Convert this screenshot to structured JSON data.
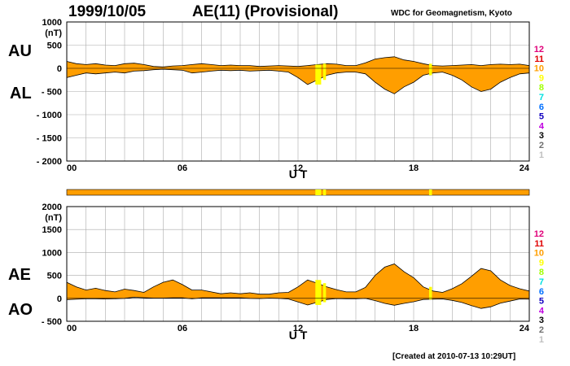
{
  "header": {
    "date": "1999/10/05",
    "title": "AE(11) (Provisional)",
    "source": "WDC for Geomagnetism, Kyoto"
  },
  "footer": {
    "created": "[Created at 2010-07-13 10:29UT]"
  },
  "colors": {
    "fill": "#ff9e00",
    "highlight": "#ffff00",
    "station_scale": [
      "#e0007a",
      "#e00000",
      "#ff9e00",
      "#ffff00",
      "#a0ff00",
      "#00e0e0",
      "#0070ff",
      "#1000c0",
      "#c000e0",
      "#000000",
      "#707070",
      "#c0c0c0"
    ]
  },
  "station_scale_labels": [
    "12",
    "11",
    "10",
    "9",
    "8",
    "7",
    "6",
    "5",
    "4",
    "3",
    "2",
    "1"
  ],
  "chart_data": [
    {
      "type": "area",
      "panel": "AU/AL",
      "labels": {
        "upper": "AU",
        "lower": "AL"
      },
      "xlabel": "U T",
      "ylabel_unit": "(nT)",
      "xlim": [
        0,
        24
      ],
      "ylim": [
        -2000,
        1000
      ],
      "x_ticks": [
        "00",
        "06",
        "12",
        "18",
        "24"
      ],
      "y_ticks": [
        "1000",
        "500",
        "0",
        "- 500",
        "- 1000",
        "- 1500",
        "- 2000"
      ],
      "y_tick_values": [
        1000,
        500,
        0,
        -500,
        -1000,
        -1500,
        -2000
      ],
      "grid": true,
      "series": [
        {
          "name": "AU",
          "x": [
            0,
            0.5,
            1,
            1.5,
            2,
            2.5,
            3,
            3.5,
            4,
            4.5,
            5,
            5.5,
            6,
            6.5,
            7,
            7.5,
            8,
            8.5,
            9,
            9.5,
            10,
            10.5,
            11,
            11.5,
            12,
            12.5,
            13,
            13.5,
            14,
            14.5,
            15,
            15.5,
            16,
            16.5,
            17,
            17.5,
            18,
            18.5,
            19,
            19.5,
            20,
            20.5,
            21,
            21.5,
            22,
            22.5,
            23,
            23.5,
            24
          ],
          "values": [
            150,
            100,
            80,
            100,
            70,
            60,
            100,
            110,
            80,
            40,
            30,
            50,
            60,
            80,
            100,
            80,
            60,
            70,
            60,
            60,
            40,
            50,
            60,
            50,
            40,
            60,
            80,
            100,
            90,
            60,
            60,
            120,
            200,
            230,
            250,
            180,
            150,
            100,
            60,
            50,
            60,
            70,
            80,
            60,
            80,
            90,
            80,
            90,
            60
          ]
        },
        {
          "name": "AL",
          "x": [
            0,
            0.5,
            1,
            1.5,
            2,
            2.5,
            3,
            3.5,
            4,
            4.5,
            5,
            5.5,
            6,
            6.5,
            7,
            7.5,
            8,
            8.5,
            9,
            9.5,
            10,
            10.5,
            11,
            11.5,
            12,
            12.5,
            13,
            13.5,
            14,
            14.5,
            15,
            15.5,
            16,
            16.5,
            17,
            17.5,
            18,
            18.5,
            19,
            19.5,
            20,
            20.5,
            21,
            21.5,
            22,
            22.5,
            23,
            23.5,
            24
          ],
          "values": [
            -200,
            -150,
            -100,
            -120,
            -100,
            -80,
            -100,
            -60,
            -50,
            -30,
            -20,
            -30,
            -40,
            -100,
            -80,
            -60,
            -40,
            -50,
            -40,
            -60,
            -50,
            -40,
            -60,
            -80,
            -200,
            -350,
            -250,
            -150,
            -100,
            -80,
            -80,
            -120,
            -300,
            -450,
            -550,
            -400,
            -300,
            -150,
            -100,
            -80,
            -150,
            -250,
            -400,
            -500,
            -450,
            -300,
            -200,
            -120,
            -100
          ]
        }
      ],
      "highlights": [
        [
          12.9,
          13.2
        ],
        [
          13.3,
          13.45
        ],
        [
          18.8,
          18.95
        ]
      ]
    },
    {
      "type": "area",
      "panel": "AE/AO",
      "labels": {
        "upper": "AE",
        "lower": "AO"
      },
      "xlabel": "U T",
      "ylabel_unit": "(nT)",
      "xlim": [
        0,
        24
      ],
      "ylim": [
        -500,
        2000
      ],
      "x_ticks": [
        "00",
        "06",
        "12",
        "18",
        "24"
      ],
      "y_ticks": [
        "2000",
        "1500",
        "1000",
        "500",
        "0",
        "- 500"
      ],
      "y_tick_values": [
        2000,
        1500,
        1000,
        500,
        0,
        -500
      ],
      "grid": true,
      "series": [
        {
          "name": "AE",
          "x": [
            0,
            0.5,
            1,
            1.5,
            2,
            2.5,
            3,
            3.5,
            4,
            4.5,
            5,
            5.5,
            6,
            6.5,
            7,
            7.5,
            8,
            8.5,
            9,
            9.5,
            10,
            10.5,
            11,
            11.5,
            12,
            12.5,
            13,
            13.5,
            14,
            14.5,
            15,
            15.5,
            16,
            16.5,
            17,
            17.5,
            18,
            18.5,
            19,
            19.5,
            20,
            20.5,
            21,
            21.5,
            22,
            22.5,
            23,
            23.5,
            24
          ],
          "values": [
            350,
            250,
            180,
            220,
            170,
            140,
            200,
            170,
            130,
            250,
            350,
            400,
            300,
            180,
            180,
            140,
            100,
            120,
            100,
            120,
            90,
            90,
            120,
            130,
            250,
            400,
            330,
            250,
            190,
            140,
            140,
            240,
            500,
            680,
            750,
            580,
            450,
            250,
            160,
            130,
            210,
            320,
            480,
            650,
            600,
            400,
            280,
            210,
            160
          ]
        },
        {
          "name": "AO",
          "x": [
            0,
            0.5,
            1,
            1.5,
            2,
            2.5,
            3,
            3.5,
            4,
            4.5,
            5,
            5.5,
            6,
            6.5,
            7,
            7.5,
            8,
            8.5,
            9,
            9.5,
            10,
            10.5,
            11,
            11.5,
            12,
            12.5,
            13,
            13.5,
            14,
            14.5,
            15,
            15.5,
            16,
            16.5,
            17,
            17.5,
            18,
            18.5,
            19,
            19.5,
            20,
            20.5,
            21,
            21.5,
            22,
            22.5,
            23,
            23.5,
            24
          ],
          "values": [
            -30,
            -20,
            -10,
            -10,
            -15,
            -10,
            0,
            25,
            15,
            5,
            5,
            10,
            10,
            -10,
            10,
            10,
            10,
            10,
            10,
            0,
            -5,
            5,
            0,
            -15,
            -80,
            -145,
            -85,
            -25,
            -5,
            -10,
            -10,
            0,
            -50,
            -110,
            -150,
            -110,
            -75,
            -25,
            -20,
            -15,
            -45,
            -90,
            -160,
            -220,
            -185,
            -105,
            -60,
            -15,
            -20
          ]
        }
      ],
      "highlights": [
        [
          12.9,
          13.2
        ],
        [
          13.3,
          13.45
        ],
        [
          18.8,
          18.95
        ]
      ]
    }
  ]
}
